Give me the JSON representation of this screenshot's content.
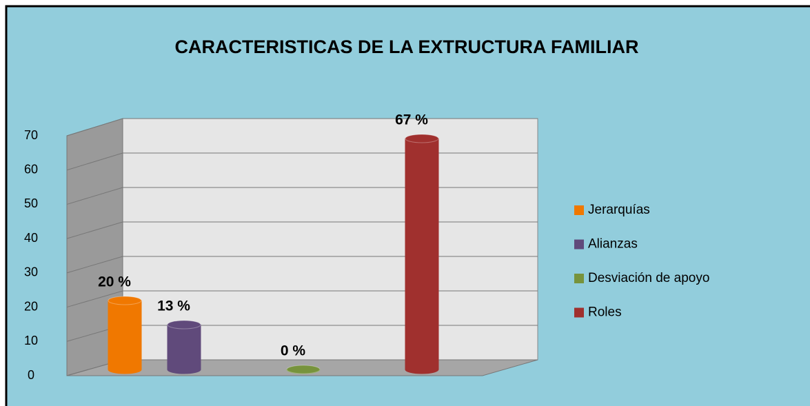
{
  "chart_data": {
    "type": "bar3d",
    "title": "CARACTERISTICAS DE LA EXTRUCTURA FAMILIAR",
    "series": [
      {
        "name": "Jerarquías",
        "color": "#F07800",
        "values": [
          20
        ],
        "value_labels": [
          "20 %"
        ]
      },
      {
        "name": "Alianzas",
        "color": "#604A7B",
        "values": [
          13
        ],
        "value_labels": [
          "13 %"
        ]
      },
      {
        "name": "Desviación de apoyo",
        "color": "#77933C",
        "values": [
          0
        ],
        "value_labels": [
          "0 %"
        ]
      },
      {
        "name": "Roles",
        "color": "#A0302E",
        "values": [
          67
        ],
        "value_labels": [
          "67 %"
        ]
      }
    ],
    "ylim": [
      0,
      70
    ],
    "yticks": [
      0,
      10,
      20,
      30,
      40,
      50,
      60,
      70
    ],
    "grid": true,
    "legend": "right"
  }
}
